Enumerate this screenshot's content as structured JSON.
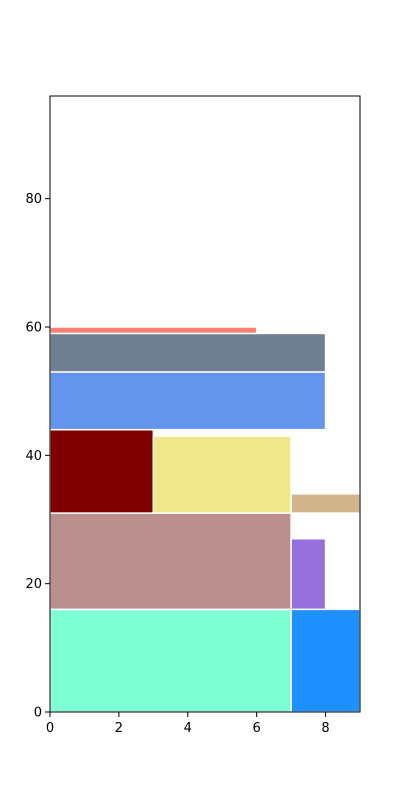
{
  "chart_data": {
    "type": "treemap",
    "title": "",
    "xlabel": "",
    "ylabel": "",
    "xlim": [
      0,
      9
    ],
    "ylim": [
      0,
      96
    ],
    "grid": false,
    "xticks": [
      0,
      2,
      4,
      6,
      8
    ],
    "yticks": [
      0,
      20,
      40,
      60,
      80
    ],
    "xtick_labels": [
      "0",
      "2",
      "4",
      "6",
      "8"
    ],
    "ytick_labels": [
      "0",
      "20",
      "40",
      "60",
      "80"
    ],
    "rects": [
      {
        "id": "aquamarine",
        "x0": 0,
        "x1": 7,
        "y0": 0,
        "y1": 16,
        "color": "#7fffd4"
      },
      {
        "id": "dodgerblue",
        "x0": 7,
        "x1": 9,
        "y0": 0,
        "y1": 16,
        "color": "#1e90ff"
      },
      {
        "id": "rosybrown",
        "x0": 0,
        "x1": 7,
        "y0": 16,
        "y1": 31,
        "color": "#bc8f8f"
      },
      {
        "id": "mediumpurple",
        "x0": 7,
        "x1": 8,
        "y0": 16,
        "y1": 27,
        "color": "#9370db"
      },
      {
        "id": "tan",
        "x0": 7,
        "x1": 9,
        "y0": 31,
        "y1": 34,
        "color": "#d2b48c"
      },
      {
        "id": "maroon",
        "x0": 0,
        "x1": 3,
        "y0": 31,
        "y1": 44,
        "color": "#800000"
      },
      {
        "id": "khaki",
        "x0": 3,
        "x1": 7,
        "y0": 31,
        "y1": 43,
        "color": "#f0e68c"
      },
      {
        "id": "cornflowerblue",
        "x0": 0,
        "x1": 8,
        "y0": 44,
        "y1": 53,
        "color": "#6495ed"
      },
      {
        "id": "slategray",
        "x0": 0,
        "x1": 8,
        "y0": 53,
        "y1": 59,
        "color": "#708090"
      },
      {
        "id": "salmon",
        "x0": 0,
        "x1": 6,
        "y0": 59,
        "y1": 60,
        "color": "#fa8072"
      }
    ]
  }
}
